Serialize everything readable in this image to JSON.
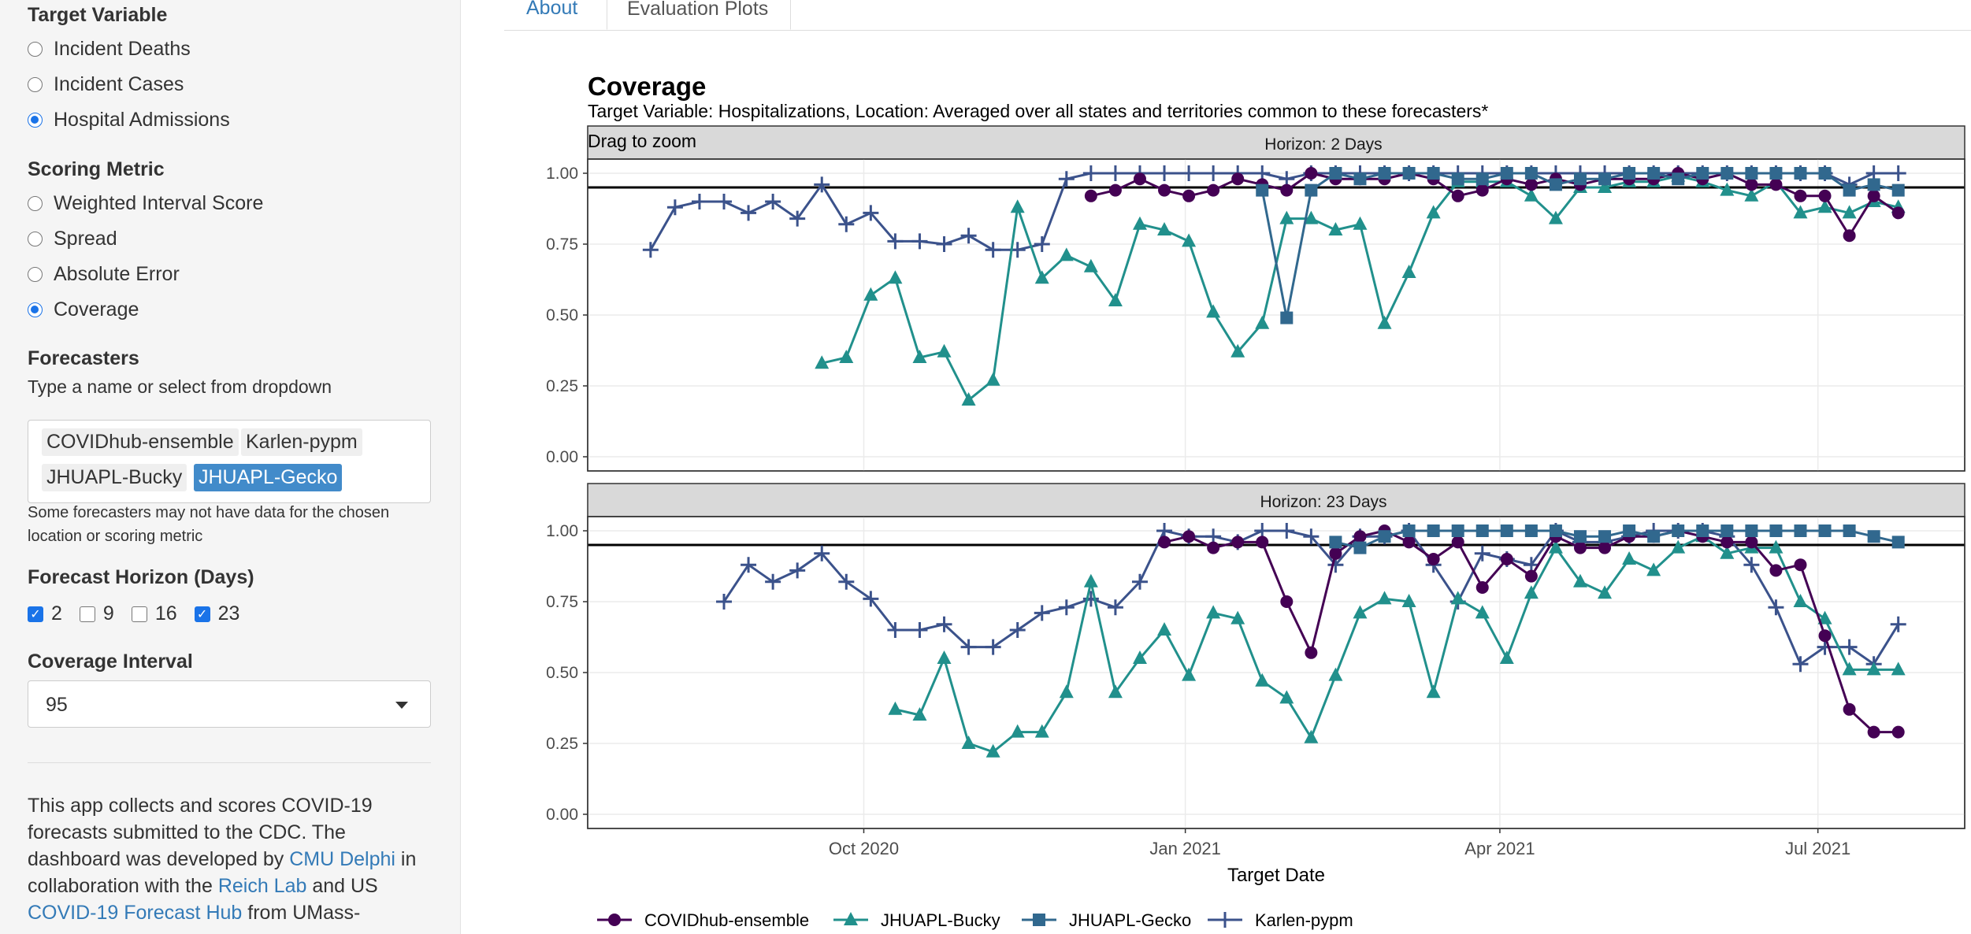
{
  "sidebar": {
    "target_variable": {
      "title": "Target Variable",
      "options": [
        {
          "label": "Incident Deaths",
          "selected": false
        },
        {
          "label": "Incident Cases",
          "selected": false
        },
        {
          "label": "Hospital Admissions",
          "selected": true
        }
      ]
    },
    "scoring_metric": {
      "title": "Scoring Metric",
      "options": [
        {
          "label": "Weighted Interval Score",
          "selected": false
        },
        {
          "label": "Spread",
          "selected": false
        },
        {
          "label": "Absolute Error",
          "selected": false
        },
        {
          "label": "Coverage",
          "selected": true
        }
      ]
    },
    "forecasters": {
      "title": "Forecasters",
      "hint": "Type a name or select from dropdown",
      "chips": [
        "COVIDhub-ensemble",
        "Karlen-pypm",
        "JHUAPL-Bucky",
        "JHUAPL-Gecko"
      ],
      "note_line1": "Some forecasters may not have data for the chosen",
      "note_line2": "location or scoring metric"
    },
    "horizon": {
      "title": "Forecast Horizon (Days)",
      "options": [
        {
          "label": "2",
          "checked": true
        },
        {
          "label": "9",
          "checked": false
        },
        {
          "label": "16",
          "checked": false
        },
        {
          "label": "23",
          "checked": true
        }
      ]
    },
    "coverage_interval": {
      "title": "Coverage Interval",
      "value": "95"
    },
    "about": {
      "t1": "This app collects and scores COVID-19 forecasts submitted to the CDC. The dashboard was developed by ",
      "link1": "CMU Delphi",
      "t2": " in collaboration with the ",
      "link2": "Reich Lab",
      "t3": " and US ",
      "link3": "COVID-19 Forecast Hub",
      "t4": " from UMass-"
    }
  },
  "tabs": [
    {
      "label": "About",
      "active": false
    },
    {
      "label": "Evaluation Plots",
      "active": true
    }
  ],
  "plot": {
    "title": "Coverage",
    "subtitle": "Target Variable: Hospitalizations, Location: Averaged over all states and territories common to these forecasters*",
    "drag_hint": "Drag to zoom"
  },
  "chart_data": {
    "type": "line",
    "xlabel": "Target Date",
    "x_ticks": [
      "2020-10-01",
      "2021-01-01",
      "2021-04-01",
      "2021-07-01"
    ],
    "x_tick_labels": [
      "Oct 2020",
      "Jan 2021",
      "Apr 2021",
      "Jul 2021"
    ],
    "xlim": [
      "2020-07-14",
      "2021-08-12"
    ],
    "ylim": [
      -0.05,
      1.05
    ],
    "y_ticks": [
      0,
      0.25,
      0.5,
      0.75,
      1.0
    ],
    "y_tick_labels": [
      "0.00",
      "0.25",
      "0.50",
      "0.75",
      "1.00"
    ],
    "reference_line": 0.95,
    "legend_position": "bottom",
    "colors": {
      "COVIDhub-ensemble": "#440154",
      "JHUAPL-Bucky": "#21908c",
      "JHUAPL-Gecko": "#31688e",
      "Karlen-pypm": "#3b528b"
    },
    "markers": {
      "COVIDhub-ensemble": "circle",
      "JHUAPL-Bucky": "triangle",
      "JHUAPL-Gecko": "square",
      "Karlen-pypm": "plus"
    },
    "panels": [
      {
        "strip": "Horizon: 2 Days",
        "series": [
          {
            "name": "Karlen-pypm",
            "x": [
              "2020-08-01",
              "2020-08-08",
              "2020-08-15",
              "2020-08-22",
              "2020-08-29",
              "2020-09-05",
              "2020-09-12",
              "2020-09-19",
              "2020-09-26",
              "2020-10-03",
              "2020-10-10",
              "2020-10-17",
              "2020-10-24",
              "2020-10-31",
              "2020-11-07",
              "2020-11-14",
              "2020-11-21",
              "2020-11-28",
              "2020-12-05",
              "2020-12-12",
              "2020-12-19",
              "2020-12-26",
              "2021-01-02",
              "2021-01-09",
              "2021-01-16",
              "2021-01-23",
              "2021-01-30",
              "2021-02-06",
              "2021-02-13",
              "2021-02-20",
              "2021-02-27",
              "2021-03-06",
              "2021-03-13",
              "2021-03-20",
              "2021-03-27",
              "2021-04-03",
              "2021-04-10",
              "2021-04-17",
              "2021-04-24",
              "2021-05-01",
              "2021-05-08",
              "2021-05-15",
              "2021-05-22",
              "2021-05-29",
              "2021-06-05",
              "2021-06-12",
              "2021-06-19",
              "2021-06-26",
              "2021-07-03",
              "2021-07-10",
              "2021-07-17",
              "2021-07-24"
            ],
            "y": [
              0.73,
              0.88,
              0.9,
              0.9,
              0.86,
              0.9,
              0.84,
              0.96,
              0.82,
              0.86,
              0.76,
              0.76,
              0.75,
              0.78,
              0.73,
              0.73,
              0.75,
              0.98,
              1.0,
              1.0,
              1.0,
              1.0,
              1.0,
              1.0,
              1.0,
              1.0,
              0.98,
              1.0,
              1.0,
              1.0,
              1.0,
              1.0,
              1.0,
              1.0,
              1.0,
              1.0,
              1.0,
              1.0,
              1.0,
              1.0,
              1.0,
              1.0,
              1.0,
              1.0,
              1.0,
              1.0,
              1.0,
              1.0,
              1.0,
              0.96,
              1.0,
              1.0
            ]
          },
          {
            "name": "JHUAPL-Bucky",
            "x": [
              "2020-09-19",
              "2020-09-26",
              "2020-10-03",
              "2020-10-10",
              "2020-10-17",
              "2020-10-24",
              "2020-10-31",
              "2020-11-07",
              "2020-11-14",
              "2020-11-21",
              "2020-11-28",
              "2020-12-05",
              "2020-12-12",
              "2020-12-19",
              "2020-12-26",
              "2021-01-02",
              "2021-01-09",
              "2021-01-16",
              "2021-01-23",
              "2021-01-30",
              "2021-02-06",
              "2021-02-13",
              "2021-02-20",
              "2021-02-27",
              "2021-03-06",
              "2021-03-13",
              "2021-03-20",
              "2021-03-27",
              "2021-04-03",
              "2021-04-10",
              "2021-04-17",
              "2021-04-24",
              "2021-05-01",
              "2021-05-08",
              "2021-05-15",
              "2021-05-22",
              "2021-05-29",
              "2021-06-05",
              "2021-06-12",
              "2021-06-19",
              "2021-06-26",
              "2021-07-03",
              "2021-07-10",
              "2021-07-17",
              "2021-07-24"
            ],
            "y": [
              0.33,
              0.35,
              0.57,
              0.63,
              0.35,
              0.37,
              0.2,
              0.27,
              0.88,
              0.63,
              0.71,
              0.67,
              0.55,
              0.82,
              0.8,
              0.76,
              0.51,
              0.37,
              0.47,
              0.84,
              0.84,
              0.8,
              0.82,
              0.47,
              0.65,
              0.86,
              0.97,
              0.97,
              0.97,
              0.92,
              0.84,
              0.95,
              0.95,
              0.97,
              0.97,
              0.99,
              0.97,
              0.94,
              0.92,
              0.97,
              0.86,
              0.88,
              0.86,
              0.9,
              0.88
            ]
          },
          {
            "name": "COVIDhub-ensemble",
            "x": [
              "2020-12-05",
              "2020-12-12",
              "2020-12-19",
              "2020-12-26",
              "2021-01-02",
              "2021-01-09",
              "2021-01-16",
              "2021-01-23",
              "2021-01-30",
              "2021-02-06",
              "2021-02-13",
              "2021-02-20",
              "2021-02-27",
              "2021-03-06",
              "2021-03-13",
              "2021-03-20",
              "2021-03-27",
              "2021-04-03",
              "2021-04-10",
              "2021-04-17",
              "2021-04-24",
              "2021-05-01",
              "2021-05-08",
              "2021-05-15",
              "2021-05-22",
              "2021-05-29",
              "2021-06-05",
              "2021-06-12",
              "2021-06-19",
              "2021-06-26",
              "2021-07-03",
              "2021-07-10",
              "2021-07-17",
              "2021-07-24"
            ],
            "y": [
              0.92,
              0.94,
              0.98,
              0.94,
              0.92,
              0.94,
              0.98,
              0.96,
              0.94,
              1.0,
              0.98,
              0.98,
              0.98,
              1.0,
              0.98,
              0.92,
              0.94,
              0.98,
              0.96,
              0.98,
              0.96,
              0.98,
              0.98,
              0.98,
              1.0,
              0.98,
              1.0,
              0.96,
              0.96,
              0.92,
              0.92,
              0.78,
              0.92,
              0.86
            ]
          },
          {
            "name": "JHUAPL-Gecko",
            "x": [
              "2021-01-23",
              "2021-01-30",
              "2021-02-06",
              "2021-02-13",
              "2021-02-20",
              "2021-02-27",
              "2021-03-06",
              "2021-03-13",
              "2021-03-20",
              "2021-03-27",
              "2021-04-03",
              "2021-04-10",
              "2021-04-17",
              "2021-04-24",
              "2021-05-01",
              "2021-05-08",
              "2021-05-15",
              "2021-05-22",
              "2021-05-29",
              "2021-06-05",
              "2021-06-12",
              "2021-06-19",
              "2021-06-26",
              "2021-07-03",
              "2021-07-10",
              "2021-07-17",
              "2021-07-24"
            ],
            "y": [
              0.94,
              0.49,
              0.94,
              1.0,
              0.98,
              1.0,
              1.0,
              1.0,
              0.98,
              0.98,
              1.0,
              1.0,
              0.96,
              0.98,
              0.98,
              1.0,
              1.0,
              0.98,
              1.0,
              1.0,
              1.0,
              1.0,
              1.0,
              1.0,
              0.94,
              0.96,
              0.94
            ]
          }
        ]
      },
      {
        "strip": "Horizon: 23 Days",
        "series": [
          {
            "name": "Karlen-pypm",
            "x": [
              "2020-08-22",
              "2020-08-29",
              "2020-09-05",
              "2020-09-12",
              "2020-09-19",
              "2020-09-26",
              "2020-10-03",
              "2020-10-10",
              "2020-10-17",
              "2020-10-24",
              "2020-10-31",
              "2020-11-07",
              "2020-11-14",
              "2020-11-21",
              "2020-11-28",
              "2020-12-05",
              "2020-12-12",
              "2020-12-19",
              "2020-12-26",
              "2021-01-02",
              "2021-01-09",
              "2021-01-16",
              "2021-01-23",
              "2021-01-30",
              "2021-02-06",
              "2021-02-13",
              "2021-02-20",
              "2021-02-27",
              "2021-03-06",
              "2021-03-13",
              "2021-03-20",
              "2021-03-27",
              "2021-04-03",
              "2021-04-10",
              "2021-04-17",
              "2021-04-24",
              "2021-05-01",
              "2021-05-08",
              "2021-05-15",
              "2021-05-22",
              "2021-05-29",
              "2021-06-05",
              "2021-06-12",
              "2021-06-19",
              "2021-06-26",
              "2021-07-03",
              "2021-07-10",
              "2021-07-17",
              "2021-07-24"
            ],
            "y": [
              0.75,
              0.88,
              0.82,
              0.86,
              0.92,
              0.82,
              0.76,
              0.65,
              0.65,
              0.67,
              0.59,
              0.59,
              0.65,
              0.71,
              0.73,
              0.76,
              0.73,
              0.82,
              1.0,
              0.98,
              0.98,
              0.96,
              1.0,
              1.0,
              0.98,
              0.88,
              0.98,
              0.98,
              1.0,
              0.88,
              0.75,
              0.92,
              0.9,
              0.88,
              1.0,
              0.96,
              0.96,
              0.98,
              1.0,
              1.0,
              1.0,
              0.98,
              0.88,
              0.73,
              0.53,
              0.59,
              0.59,
              0.53,
              0.67
            ]
          },
          {
            "name": "JHUAPL-Bucky",
            "x": [
              "2020-10-10",
              "2020-10-17",
              "2020-10-24",
              "2020-10-31",
              "2020-11-07",
              "2020-11-14",
              "2020-11-21",
              "2020-11-28",
              "2020-12-05",
              "2020-12-12",
              "2020-12-19",
              "2020-12-26",
              "2021-01-02",
              "2021-01-09",
              "2021-01-16",
              "2021-01-23",
              "2021-01-30",
              "2021-02-06",
              "2021-02-13",
              "2021-02-20",
              "2021-02-27",
              "2021-03-06",
              "2021-03-13",
              "2021-03-20",
              "2021-03-27",
              "2021-04-03",
              "2021-04-10",
              "2021-04-17",
              "2021-04-24",
              "2021-05-01",
              "2021-05-08",
              "2021-05-15",
              "2021-05-22",
              "2021-05-29",
              "2021-06-05",
              "2021-06-12",
              "2021-06-19",
              "2021-06-26",
              "2021-07-03",
              "2021-07-10",
              "2021-07-17",
              "2021-07-24"
            ],
            "y": [
              0.37,
              0.35,
              0.55,
              0.25,
              0.22,
              0.29,
              0.29,
              0.43,
              0.82,
              0.43,
              0.55,
              0.65,
              0.49,
              0.71,
              0.69,
              0.47,
              0.41,
              0.27,
              0.49,
              0.71,
              0.76,
              0.75,
              0.43,
              0.76,
              0.71,
              0.55,
              0.78,
              0.94,
              0.82,
              0.78,
              0.9,
              0.86,
              0.94,
              0.98,
              0.92,
              0.94,
              0.94,
              0.75,
              0.69,
              0.51,
              0.51,
              0.51
            ]
          },
          {
            "name": "COVIDhub-ensemble",
            "x": [
              "2020-12-26",
              "2021-01-02",
              "2021-01-09",
              "2021-01-16",
              "2021-01-23",
              "2021-01-30",
              "2021-02-06",
              "2021-02-13",
              "2021-02-20",
              "2021-02-27",
              "2021-03-06",
              "2021-03-13",
              "2021-03-20",
              "2021-03-27",
              "2021-04-03",
              "2021-04-10",
              "2021-04-17",
              "2021-04-24",
              "2021-05-01",
              "2021-05-08",
              "2021-05-15",
              "2021-05-22",
              "2021-05-29",
              "2021-06-05",
              "2021-06-12",
              "2021-06-19",
              "2021-06-26",
              "2021-07-03",
              "2021-07-10",
              "2021-07-17",
              "2021-07-24"
            ],
            "y": [
              0.96,
              0.98,
              0.94,
              0.96,
              0.96,
              0.75,
              0.57,
              0.92,
              0.98,
              1.0,
              0.96,
              0.9,
              0.96,
              0.8,
              0.9,
              0.84,
              0.98,
              0.94,
              0.94,
              0.98,
              0.98,
              1.0,
              0.98,
              0.96,
              0.96,
              0.86,
              0.88,
              0.63,
              0.37,
              0.29,
              0.29
            ]
          },
          {
            "name": "JHUAPL-Gecko",
            "x": [
              "2021-02-13",
              "2021-02-20",
              "2021-02-27",
              "2021-03-06",
              "2021-03-13",
              "2021-03-20",
              "2021-03-27",
              "2021-04-03",
              "2021-04-10",
              "2021-04-17",
              "2021-04-24",
              "2021-05-01",
              "2021-05-08",
              "2021-05-15",
              "2021-05-22",
              "2021-05-29",
              "2021-06-05",
              "2021-06-12",
              "2021-06-19",
              "2021-06-26",
              "2021-07-03",
              "2021-07-10",
              "2021-07-17",
              "2021-07-24"
            ],
            "y": [
              0.96,
              0.94,
              0.98,
              1.0,
              1.0,
              1.0,
              1.0,
              1.0,
              1.0,
              1.0,
              0.98,
              0.98,
              1.0,
              0.98,
              1.0,
              1.0,
              1.0,
              1.0,
              1.0,
              1.0,
              1.0,
              1.0,
              0.98,
              0.96
            ]
          }
        ]
      }
    ]
  }
}
